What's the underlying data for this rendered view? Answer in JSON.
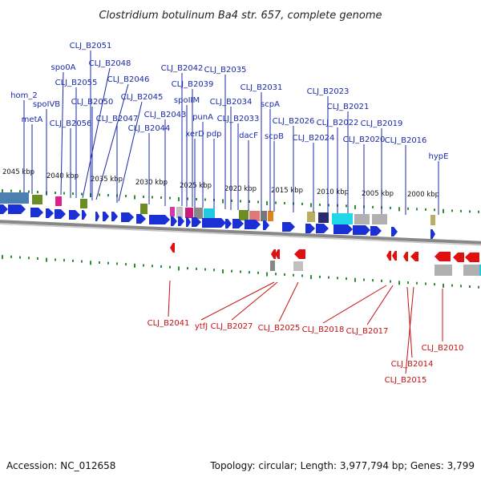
{
  "title": "Clostridium botulinum Ba4 str. 657, complete genome",
  "footer": {
    "accession": "Accession: NC_012658",
    "summary": "Topology: circular; Length: 3,977,794 bp; Genes: 3,799"
  },
  "colors": {
    "forward": "#1a2fd6",
    "reverse": "#e01010",
    "label_forward": "#1a2aa8",
    "label_reverse": "#c41010",
    "tick": "#2e8b2e",
    "backbone": "#8a8a8a"
  },
  "kbp_labels": [
    "2045 kbp",
    "2040 kbp",
    "2035 kbp",
    "2030 kbp",
    "2025 kbp",
    "2020 kbp",
    "2015 kbp",
    "2010 kbp",
    "2005 kbp",
    "2000 kbp"
  ],
  "top_labels": [
    "CLJ_B2051",
    "CLJ_B2048",
    "spo0A",
    "CLJ_B2055",
    "CLJ_B2046",
    "hom_2",
    "CLJ_B2050",
    "spoIVB",
    "CLJ_B2045",
    "metA",
    "CLJ_B2056",
    "CLJ_B2047",
    "CLJ_B2044",
    "CLJ_B2042",
    "CLJ_B2039",
    "spoIIM",
    "CLJ_B2043",
    "punA",
    "xerD",
    "pdp",
    "CLJ_B2035",
    "CLJ_B2034",
    "CLJ_B2033",
    "dacF",
    "CLJ_B2031",
    "scpA",
    "scpB",
    "CLJ_B2026",
    "CLJ_B2023",
    "CLJ_B2021",
    "CLJ_B2022",
    "CLJ_B2024",
    "CLJ_B2019",
    "CLJ_B2020",
    "CLJ_B2016",
    "hypE"
  ],
  "bottom_labels": [
    "CLJ_B2041",
    "ytfJ",
    "CLJ_B2027",
    "CLJ_B2025",
    "CLJ_B2018",
    "CLJ_B2017",
    "CLJ_B2010",
    "CLJ_B2014",
    "CLJ_B2015"
  ]
}
